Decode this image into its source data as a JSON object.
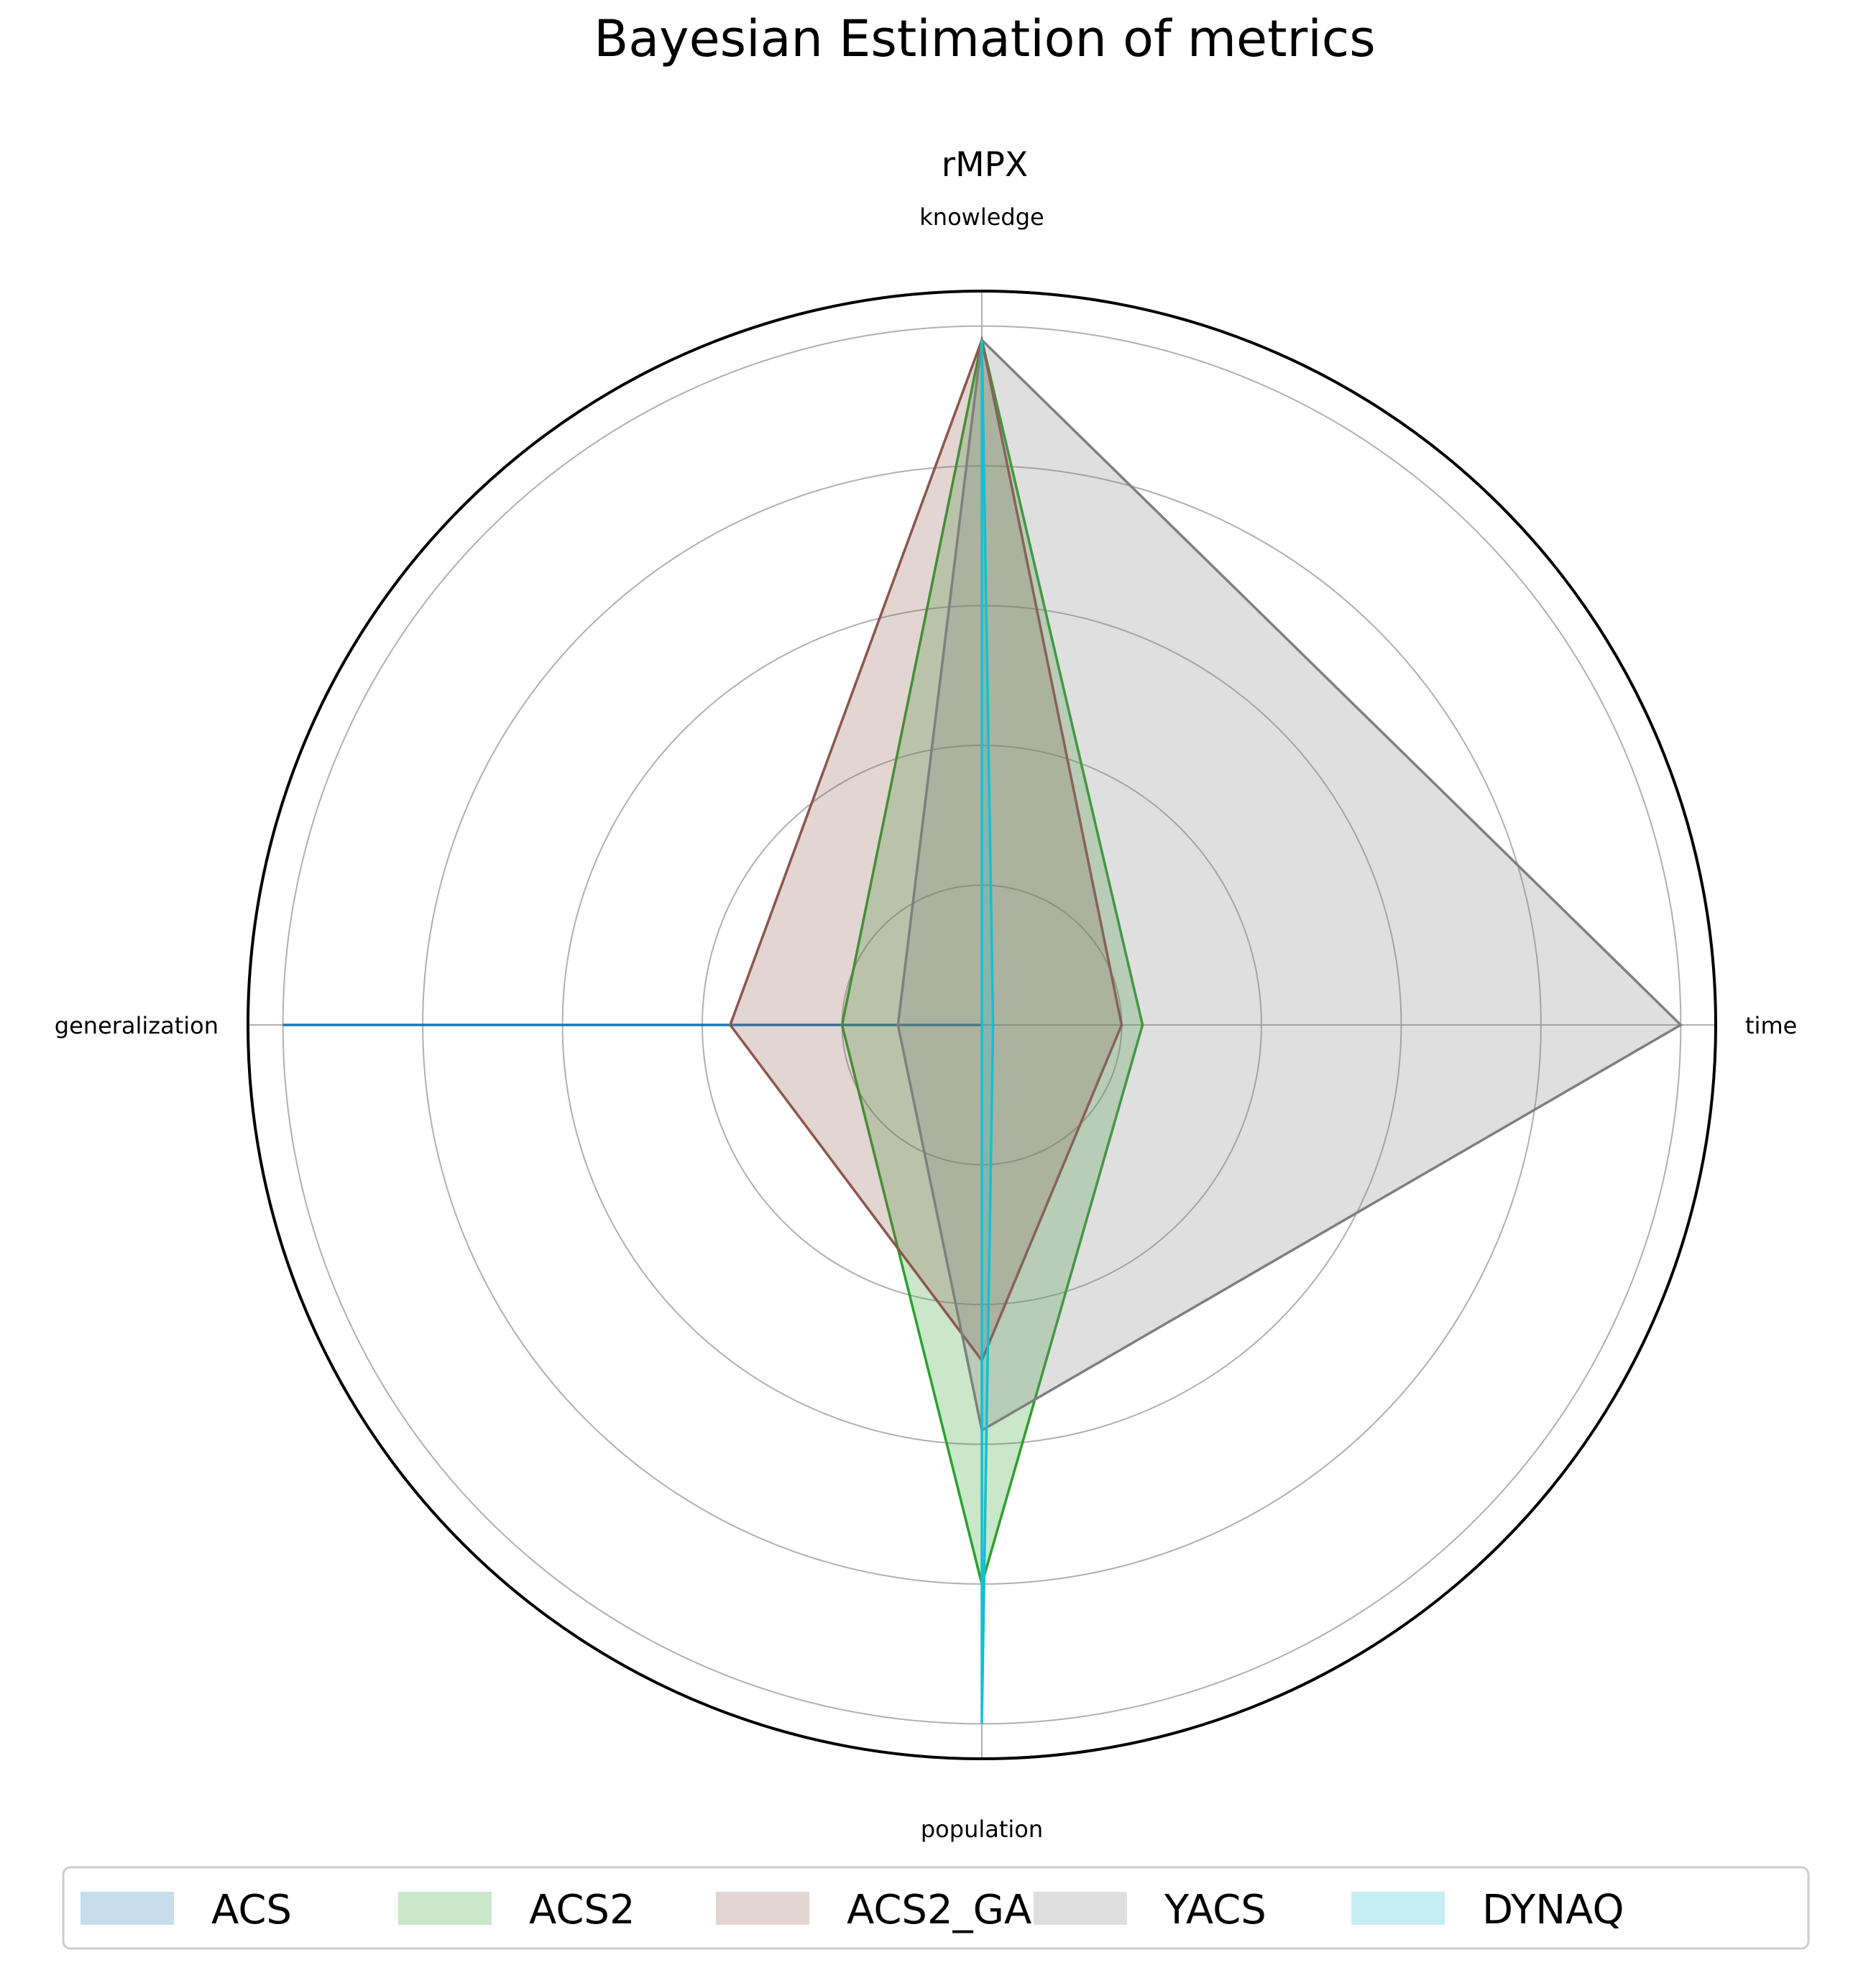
{
  "chart_data": {
    "type": "radar",
    "title": "Bayesian Estimation of metrics",
    "subtitle": "rMPX",
    "axes": [
      "knowledge",
      "time",
      "population",
      "generalization"
    ],
    "rlim": [
      0,
      5.25
    ],
    "grid": true,
    "legend_position": "bottom",
    "series": [
      {
        "name": "ACS",
        "color": "#1f77b4",
        "values": [
          0.0,
          0.0,
          0.0,
          5.0
        ]
      },
      {
        "name": "ACS2",
        "color": "#2ca02c",
        "values": [
          4.9,
          1.15,
          4.0,
          1.0
        ]
      },
      {
        "name": "ACS2_GA",
        "color": "#8c564b",
        "values": [
          4.9,
          1.0,
          2.4,
          1.8
        ]
      },
      {
        "name": "YACS",
        "color": "#7f7f7f",
        "values": [
          4.9,
          5.0,
          2.9,
          0.6
        ]
      },
      {
        "name": "DYNAQ",
        "color": "#17becf",
        "values": [
          4.9,
          0.08,
          5.0,
          0.0
        ]
      }
    ]
  }
}
